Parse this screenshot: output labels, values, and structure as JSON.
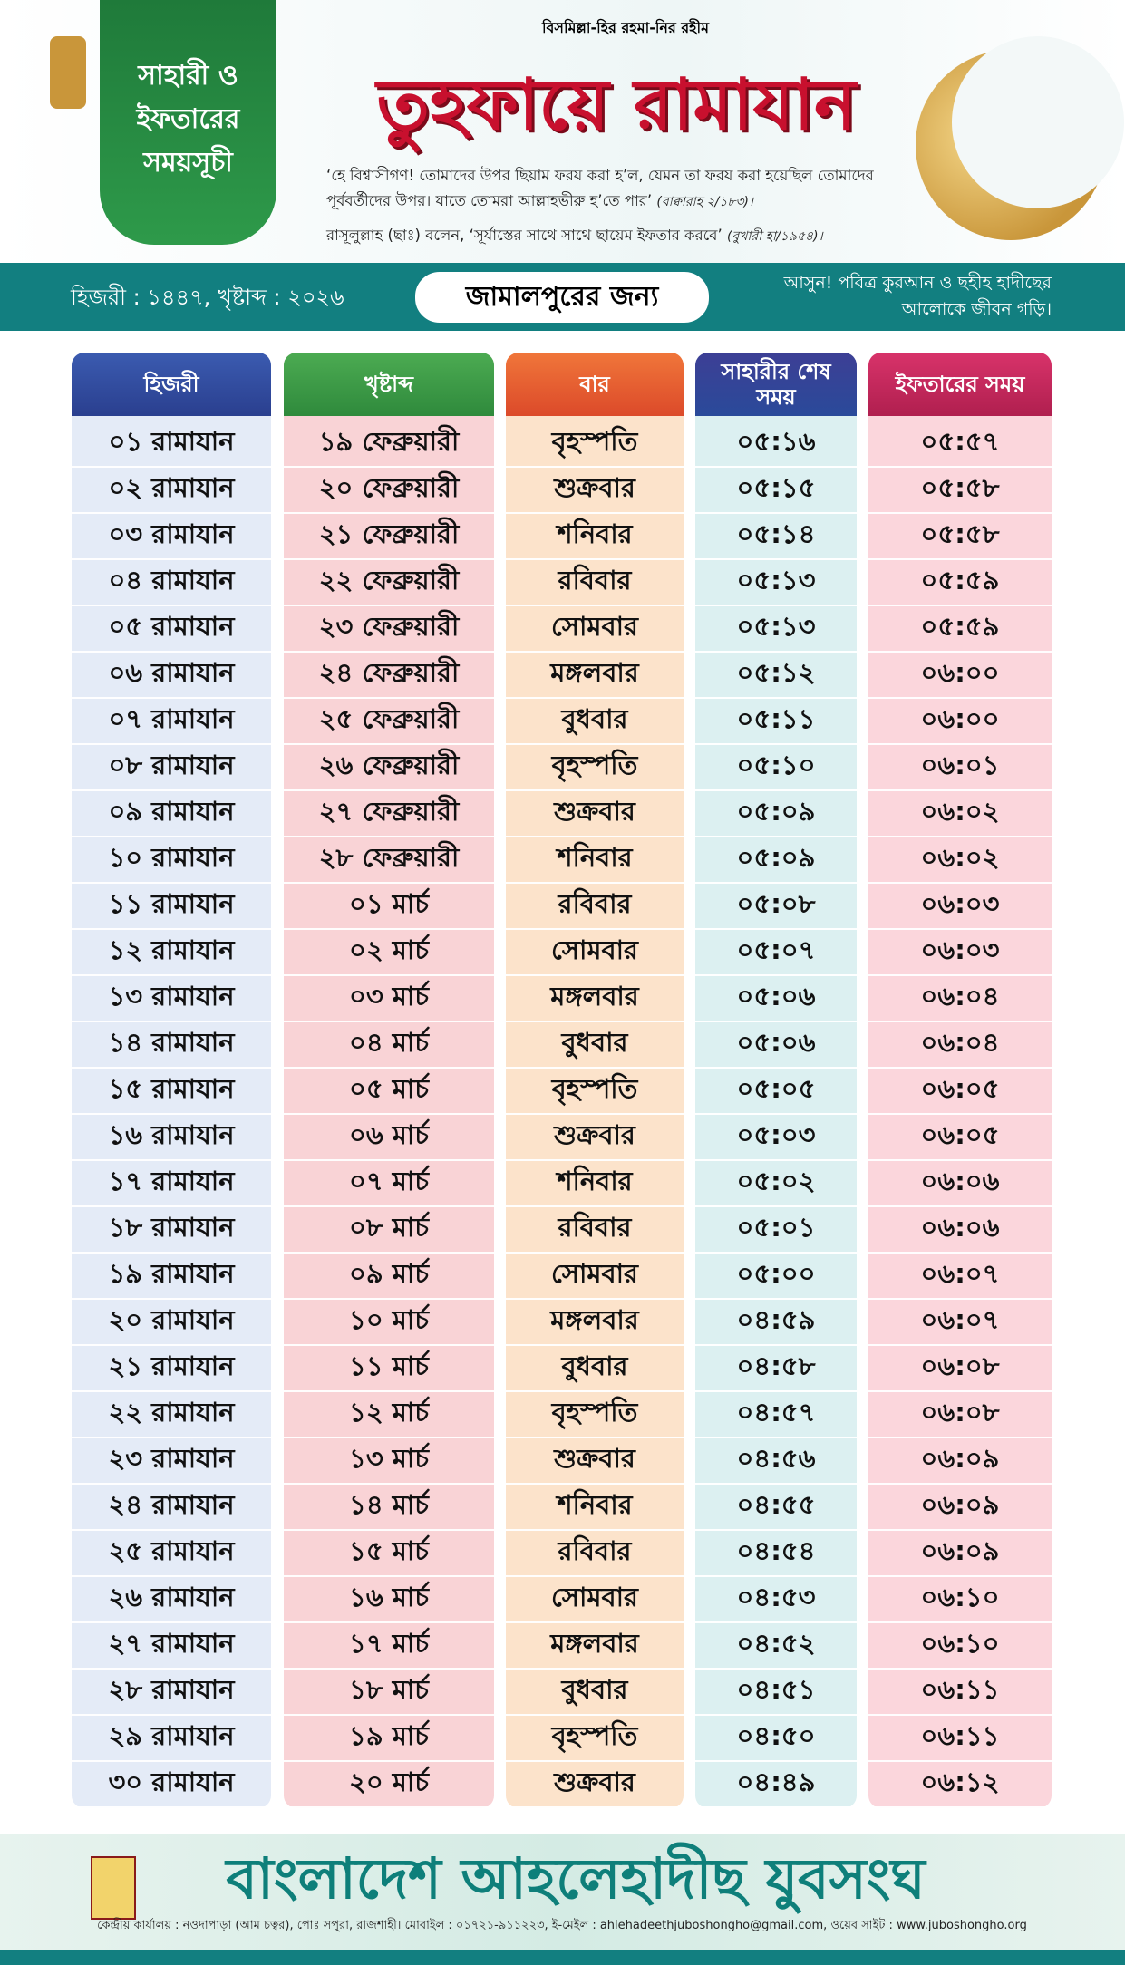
{
  "header": {
    "bismillah": "বিসমিল্লা-হির রহমা-নির রহীম",
    "badge": [
      "সাহারী ও",
      "ইফতারের",
      "সময়সূচী"
    ],
    "title": "তুহফায়ে রামাযান",
    "quote1": "‘হে বিশ্বাসীগণ! তোমাদের উপর ছিয়াম ফরয করা হ’ল, যেমন তা ফরয করা হয়েছিল তোমাদের পূর্ববর্তীদের উপর। যাতে তোমরা আল্লাহভীরু হ’তে পার’",
    "quote1_ref": "(বাক্বারাহ ২/১৮৩)।",
    "quote2": "রাসূলুল্লাহ (ছাঃ) বলেন, ‘সূর্যাস্তের সাথে সাথে ছায়েম ইফতার করবে’",
    "quote2_ref": "(বুখারী হা/১৯৫৪)।"
  },
  "band": {
    "year": "হিজরী : ১৪৪৭, খৃষ্টাব্দ : ২০২৬",
    "location": "জামালপুরের জন্য",
    "motto": "আসুন! পবিত্র কুরআন ও ছহীহ হাদীছের আলোকে জীবন গড়ি।"
  },
  "table": {
    "headers": [
      "হিজরী",
      "খৃষ্টাব্দ",
      "বার",
      "সাহারীর শেষ সময়",
      "ইফতারের সময়"
    ],
    "rows": [
      [
        "০১ রামাযান",
        "১৯ ফেব্রুয়ারী",
        "বৃহস্পতি",
        "০৫:১৬",
        "০৫:৫৭"
      ],
      [
        "০২ রামাযান",
        "২০ ফেব্রুয়ারী",
        "শুক্রবার",
        "০৫:১৫",
        "০৫:৫৮"
      ],
      [
        "০৩ রামাযান",
        "২১ ফেব্রুয়ারী",
        "শনিবার",
        "০৫:১৪",
        "০৫:৫৮"
      ],
      [
        "০৪ রামাযান",
        "২২ ফেব্রুয়ারী",
        "রবিবার",
        "০৫:১৩",
        "০৫:৫৯"
      ],
      [
        "০৫ রামাযান",
        "২৩ ফেব্রুয়ারী",
        "সোমবার",
        "০৫:১৩",
        "০৫:৫৯"
      ],
      [
        "০৬ রামাযান",
        "২৪ ফেব্রুয়ারী",
        "মঙ্গলবার",
        "০৫:১২",
        "০৬:০০"
      ],
      [
        "০৭ রামাযান",
        "২৫ ফেব্রুয়ারী",
        "বুধবার",
        "০৫:১১",
        "০৬:০০"
      ],
      [
        "০৮ রামাযান",
        "২৬ ফেব্রুয়ারী",
        "বৃহস্পতি",
        "০৫:১০",
        "০৬:০১"
      ],
      [
        "০৯ রামাযান",
        "২৭ ফেব্রুয়ারী",
        "শুক্রবার",
        "০৫:০৯",
        "০৬:০২"
      ],
      [
        "১০ রামাযান",
        "২৮ ফেব্রুয়ারী",
        "শনিবার",
        "০৫:০৯",
        "০৬:০২"
      ],
      [
        "১১ রামাযান",
        "০১ মার্চ",
        "রবিবার",
        "০৫:০৮",
        "০৬:০৩"
      ],
      [
        "১২ রামাযান",
        "০২ মার্চ",
        "সোমবার",
        "০৫:০৭",
        "০৬:০৩"
      ],
      [
        "১৩ রামাযান",
        "০৩ মার্চ",
        "মঙ্গলবার",
        "০৫:০৬",
        "০৬:০৪"
      ],
      [
        "১৪ রামাযান",
        "০৪ মার্চ",
        "বুধবার",
        "০৫:০৬",
        "০৬:০৪"
      ],
      [
        "১৫ রামাযান",
        "০৫ মার্চ",
        "বৃহস্পতি",
        "০৫:০৫",
        "০৬:০৫"
      ],
      [
        "১৬ রামাযান",
        "০৬ মার্চ",
        "শুক্রবার",
        "০৫:০৩",
        "০৬:০৫"
      ],
      [
        "১৭ রামাযান",
        "০৭ মার্চ",
        "শনিবার",
        "০৫:০২",
        "০৬:০৬"
      ],
      [
        "১৮ রামাযান",
        "০৮ মার্চ",
        "রবিবার",
        "০৫:০১",
        "০৬:০৬"
      ],
      [
        "১৯ রামাযান",
        "০৯ মার্চ",
        "সোমবার",
        "০৫:০০",
        "০৬:০৭"
      ],
      [
        "২০ রামাযান",
        "১০ মার্চ",
        "মঙ্গলবার",
        "০৪:৫৯",
        "০৬:০৭"
      ],
      [
        "২১ রামাযান",
        "১১ মার্চ",
        "বুধবার",
        "০৪:৫৮",
        "০৬:০৮"
      ],
      [
        "২২ রামাযান",
        "১২ মার্চ",
        "বৃহস্পতি",
        "০৪:৫৭",
        "০৬:০৮"
      ],
      [
        "২৩ রামাযান",
        "১৩ মার্চ",
        "শুক্রবার",
        "০৪:৫৬",
        "০৬:০৯"
      ],
      [
        "২৪ রামাযান",
        "১৪ মার্চ",
        "শনিবার",
        "০৪:৫৫",
        "০৬:০৯"
      ],
      [
        "২৫ রামাযান",
        "১৫ মার্চ",
        "রবিবার",
        "০৪:৫৪",
        "০৬:০৯"
      ],
      [
        "২৬ রামাযান",
        "১৬ মার্চ",
        "সোমবার",
        "০৪:৫৩",
        "০৬:১০"
      ],
      [
        "২৭ রামাযান",
        "১৭ মার্চ",
        "মঙ্গলবার",
        "০৪:৫২",
        "০৬:১০"
      ],
      [
        "২৮ রামাযান",
        "১৮ মার্চ",
        "বুধবার",
        "০৪:৫১",
        "০৬:১১"
      ],
      [
        "২৯ রামাযান",
        "১৯ মার্চ",
        "বৃহস্পতি",
        "০৪:৫০",
        "০৬:১১"
      ],
      [
        "৩০ রামাযান",
        "২০ মার্চ",
        "শুক্রবার",
        "০৪:৪৯",
        "০৬:১২"
      ]
    ]
  },
  "footer": {
    "organization": "বাংলাদেশ আহলেহাদীছ যুবসংঘ",
    "address": "কেন্দ্রীয় কার্যালয় : নওদাপাড়া (আম চত্বর), পোঃ সপুরা, রাজশাহী। মোবাইল : ০১৭২১-৯১১২২৩, ই-মেইল : ahlehadeethjuboshongho@gmail.com, ওয়েব সাইট : www.juboshongho.org"
  }
}
